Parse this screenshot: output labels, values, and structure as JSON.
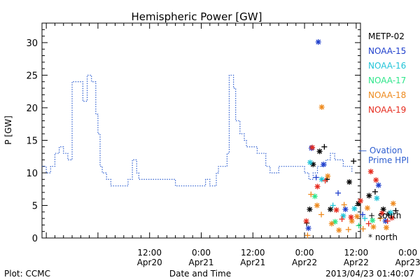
{
  "footer": {
    "plot_by": "Plot: CCMC",
    "timestamp": "2013/04/23 01:40:07"
  },
  "chart_data": {
    "type": "scatter",
    "title": "Hemispheric Power [GW]",
    "xlabel": "Date and Time",
    "ylabel": "P [GW]",
    "xlim_hours": [
      -13,
      61
    ],
    "ylim": [
      0,
      33
    ],
    "y_ticks": [
      0,
      5,
      10,
      15,
      20,
      25,
      30
    ],
    "x_ticks": [
      {
        "t": 12,
        "line1": "12:00",
        "line2": "Apr20"
      },
      {
        "t": 24,
        "line1": "0:00",
        "line2": "Apr21"
      },
      {
        "t": 36,
        "line1": "12:00",
        "line2": "Apr21"
      },
      {
        "t": 48,
        "line1": "0:00",
        "line2": "Apr22"
      },
      {
        "t": 60,
        "line1": "12:00",
        "line2": "Apr22"
      },
      {
        "t": 72,
        "line1": "0:00",
        "line2": "Apr23"
      }
    ],
    "legend": {
      "placement": "right",
      "satellites": [
        {
          "name": "METP-02",
          "color": "#000000"
        },
        {
          "name": "NOAA-15",
          "color": "#1f3fcc"
        },
        {
          "name": "NOAA-16",
          "color": "#22c4d8"
        },
        {
          "name": "NOAA-17",
          "color": "#2ee68a"
        },
        {
          "name": "NOAA-18",
          "color": "#ee8a1e"
        },
        {
          "name": "NOAA-19",
          "color": "#e62b1e"
        }
      ],
      "ovation_line1": "— Ovation",
      "ovation_line2": "Prime HPI",
      "ovation_color": "#2f5fd0",
      "south_label": "+ south",
      "north_label": "* north"
    },
    "ovation_series": {
      "name": "Ovation Prime HPI",
      "points": [
        [
          0,
          11
        ],
        [
          2,
          10
        ],
        [
          4,
          11
        ],
        [
          6,
          13
        ],
        [
          8,
          14
        ],
        [
          10,
          13
        ],
        [
          12,
          12
        ],
        [
          14,
          24
        ],
        [
          19,
          24
        ],
        [
          19,
          21
        ],
        [
          21,
          21
        ],
        [
          21,
          25
        ],
        [
          23,
          25
        ],
        [
          23,
          24
        ],
        [
          25,
          19
        ],
        [
          26,
          16
        ],
        [
          27,
          11
        ],
        [
          28,
          10
        ],
        [
          30,
          9
        ],
        [
          32,
          8
        ],
        [
          38,
          8
        ],
        [
          40,
          9
        ],
        [
          42,
          12
        ],
        [
          44,
          10
        ],
        [
          45,
          9
        ],
        [
          47,
          9
        ],
        [
          48,
          9
        ],
        [
          50,
          9
        ],
        [
          60,
          9
        ],
        [
          62,
          8
        ],
        [
          74,
          8
        ],
        [
          76,
          9
        ],
        [
          78,
          8
        ],
        [
          81,
          10
        ],
        [
          82,
          11
        ],
        [
          84,
          11
        ],
        [
          86,
          13
        ],
        [
          87,
          25
        ],
        [
          88,
          25
        ],
        [
          89,
          23
        ],
        [
          90,
          18
        ],
        [
          92,
          16
        ],
        [
          94,
          15
        ],
        [
          95,
          14
        ],
        [
          100,
          13
        ],
        [
          104,
          11
        ],
        [
          106,
          10
        ],
        [
          108,
          10
        ],
        [
          110,
          11
        ],
        [
          118,
          11
        ],
        [
          122,
          10
        ],
        [
          124,
          9
        ],
        [
          126,
          10
        ],
        [
          128,
          11
        ],
        [
          132,
          12
        ],
        [
          134,
          13
        ],
        [
          136,
          12
        ],
        [
          140,
          11
        ],
        [
          142,
          11
        ],
        [
          144,
          10
        ]
      ]
    },
    "measurements": [
      {
        "t": 48.5,
        "p": 2.3,
        "sat": "METP-02",
        "hemi": "south"
      },
      {
        "t": 49.2,
        "p": 4.4,
        "sat": "METP-02",
        "hemi": "north"
      },
      {
        "t": 50.0,
        "p": 11.3,
        "sat": "METP-02",
        "hemi": "north"
      },
      {
        "t": 51.5,
        "p": 13.3,
        "sat": "METP-02",
        "hemi": "north"
      },
      {
        "t": 52.6,
        "p": 14.0,
        "sat": "METP-02",
        "hemi": "south"
      },
      {
        "t": 53.2,
        "p": 9.0,
        "sat": "METP-02",
        "hemi": "south"
      },
      {
        "t": 54.0,
        "p": 4.4,
        "sat": "METP-02",
        "hemi": "north"
      },
      {
        "t": 58.4,
        "p": 8.6,
        "sat": "METP-02",
        "hemi": "north"
      },
      {
        "t": 59.4,
        "p": 11.8,
        "sat": "METP-02",
        "hemi": "south"
      },
      {
        "t": 60.5,
        "p": 5.3,
        "sat": "METP-02",
        "hemi": "north"
      },
      {
        "t": 63.0,
        "p": 6.5,
        "sat": "METP-02",
        "hemi": "north"
      },
      {
        "t": 64.4,
        "p": 7.1,
        "sat": "METP-02",
        "hemi": "south"
      },
      {
        "t": 66.3,
        "p": 4.4,
        "sat": "METP-02",
        "hemi": "north"
      },
      {
        "t": 67.6,
        "p": 3.7,
        "sat": "METP-02",
        "hemi": "north"
      },
      {
        "t": 69.2,
        "p": 4.2,
        "sat": "METP-02",
        "hemi": "south"
      },
      {
        "t": 51.2,
        "p": 30.1,
        "sat": "NOAA-15",
        "hemi": "north"
      },
      {
        "t": 49.6,
        "p": 13.8,
        "sat": "NOAA-15",
        "hemi": "north"
      },
      {
        "t": 52.4,
        "p": 11.3,
        "sat": "NOAA-15",
        "hemi": "north"
      },
      {
        "t": 50.7,
        "p": 9.3,
        "sat": "NOAA-15",
        "hemi": "south"
      },
      {
        "t": 55.8,
        "p": 6.9,
        "sat": "NOAA-15",
        "hemi": "south"
      },
      {
        "t": 57.5,
        "p": 4.4,
        "sat": "NOAA-15",
        "hemi": "north"
      },
      {
        "t": 65.2,
        "p": 8.1,
        "sat": "NOAA-15",
        "hemi": "north"
      },
      {
        "t": 61.5,
        "p": 3.6,
        "sat": "NOAA-15",
        "hemi": "south"
      },
      {
        "t": 66.8,
        "p": 2.6,
        "sat": "NOAA-15",
        "hemi": "north"
      },
      {
        "t": 48.9,
        "p": 1.5,
        "sat": "NOAA-15",
        "hemi": "north"
      },
      {
        "t": 49.3,
        "p": 11.6,
        "sat": "NOAA-16",
        "hemi": "north"
      },
      {
        "t": 52.0,
        "p": 9.0,
        "sat": "NOAA-16",
        "hemi": "north"
      },
      {
        "t": 54.6,
        "p": 5.0,
        "sat": "NOAA-16",
        "hemi": "south"
      },
      {
        "t": 57.0,
        "p": 3.4,
        "sat": "NOAA-16",
        "hemi": "north"
      },
      {
        "t": 59.6,
        "p": 4.5,
        "sat": "NOAA-16",
        "hemi": "north"
      },
      {
        "t": 62.0,
        "p": 3.0,
        "sat": "NOAA-16",
        "hemi": "south"
      },
      {
        "t": 64.8,
        "p": 6.1,
        "sat": "NOAA-16",
        "hemi": "north"
      },
      {
        "t": 68.0,
        "p": 3.9,
        "sat": "NOAA-16",
        "hemi": "north"
      },
      {
        "t": 50.4,
        "p": 6.4,
        "sat": "NOAA-17",
        "hemi": "north"
      },
      {
        "t": 55.1,
        "p": 2.5,
        "sat": "NOAA-17",
        "hemi": "north"
      },
      {
        "t": 60.6,
        "p": 1.9,
        "sat": "NOAA-17",
        "hemi": "south"
      },
      {
        "t": 63.8,
        "p": 2.7,
        "sat": "NOAA-17",
        "hemi": "north"
      },
      {
        "t": 52.0,
        "p": 20.1,
        "sat": "NOAA-18",
        "hemi": "north"
      },
      {
        "t": 48.7,
        "p": 0.4,
        "sat": "NOAA-18",
        "hemi": "south"
      },
      {
        "t": 49.5,
        "p": 6.7,
        "sat": "NOAA-18",
        "hemi": "south"
      },
      {
        "t": 50.9,
        "p": 5.0,
        "sat": "NOAA-18",
        "hemi": "north"
      },
      {
        "t": 51.9,
        "p": 3.6,
        "sat": "NOAA-18",
        "hemi": "south"
      },
      {
        "t": 53.4,
        "p": 9.5,
        "sat": "NOAA-18",
        "hemi": "north"
      },
      {
        "t": 54.3,
        "p": 2.2,
        "sat": "NOAA-18",
        "hemi": "north"
      },
      {
        "t": 56.0,
        "p": 1.2,
        "sat": "NOAA-18",
        "hemi": "north"
      },
      {
        "t": 57.2,
        "p": 5.1,
        "sat": "NOAA-18",
        "hemi": "south"
      },
      {
        "t": 58.2,
        "p": 1.3,
        "sat": "NOAA-18",
        "hemi": "south"
      },
      {
        "t": 59.0,
        "p": 2.6,
        "sat": "NOAA-18",
        "hemi": "north"
      },
      {
        "t": 60.2,
        "p": 3.3,
        "sat": "NOAA-18",
        "hemi": "north"
      },
      {
        "t": 61.6,
        "p": 1.4,
        "sat": "NOAA-18",
        "hemi": "south"
      },
      {
        "t": 62.6,
        "p": 4.6,
        "sat": "NOAA-18",
        "hemi": "north"
      },
      {
        "t": 64.0,
        "p": 1.7,
        "sat": "NOAA-18",
        "hemi": "north"
      },
      {
        "t": 65.6,
        "p": 3.0,
        "sat": "NOAA-18",
        "hemi": "south"
      },
      {
        "t": 67.0,
        "p": 1.6,
        "sat": "NOAA-18",
        "hemi": "north"
      },
      {
        "t": 68.6,
        "p": 5.3,
        "sat": "NOAA-18",
        "hemi": "north"
      },
      {
        "t": 49.8,
        "p": 13.9,
        "sat": "NOAA-19",
        "hemi": "north"
      },
      {
        "t": 51.0,
        "p": 7.9,
        "sat": "NOAA-19",
        "hemi": "north"
      },
      {
        "t": 52.8,
        "p": 8.8,
        "sat": "NOAA-19",
        "hemi": "south"
      },
      {
        "t": 48.4,
        "p": 2.6,
        "sat": "NOAA-19",
        "hemi": "north"
      },
      {
        "t": 55.4,
        "p": 4.3,
        "sat": "NOAA-19",
        "hemi": "north"
      },
      {
        "t": 56.7,
        "p": 2.9,
        "sat": "NOAA-19",
        "hemi": "south"
      },
      {
        "t": 58.8,
        "p": 3.2,
        "sat": "NOAA-19",
        "hemi": "north"
      },
      {
        "t": 61.0,
        "p": 5.7,
        "sat": "NOAA-19",
        "hemi": "north"
      },
      {
        "t": 62.9,
        "p": 2.2,
        "sat": "NOAA-19",
        "hemi": "south"
      },
      {
        "t": 63.4,
        "p": 10.2,
        "sat": "NOAA-19",
        "hemi": "north"
      },
      {
        "t": 64.6,
        "p": 8.9,
        "sat": "NOAA-19",
        "hemi": "north"
      },
      {
        "t": 66.0,
        "p": 3.8,
        "sat": "NOAA-19",
        "hemi": "north"
      },
      {
        "t": 67.3,
        "p": 2.6,
        "sat": "NOAA-19",
        "hemi": "south"
      },
      {
        "t": 68.3,
        "p": 3.1,
        "sat": "NOAA-19",
        "hemi": "north"
      }
    ]
  }
}
